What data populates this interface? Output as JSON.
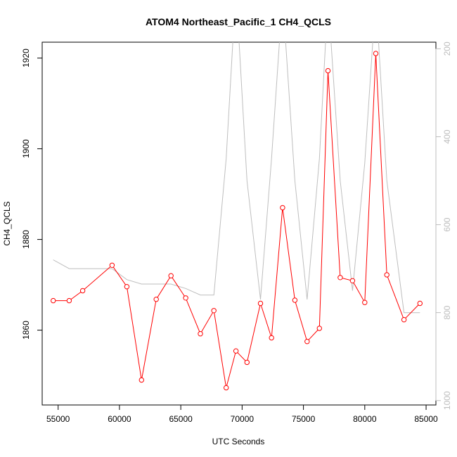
{
  "chart_data": {
    "type": "line",
    "title": "ATOM4 Northeast_Pacific_1 CH4_QCLS",
    "xlabel": "UTC Seconds",
    "ylabel": "CH4_QCLS",
    "xlim": [
      53700,
      85800
    ],
    "ylim": [
      1843.5,
      1923.5
    ],
    "y2lim": [
      1010,
      185
    ],
    "y2_reversed": true,
    "xticks": [
      55000,
      60000,
      65000,
      70000,
      75000,
      80000,
      85000
    ],
    "yticks": [
      1860,
      1880,
      1900,
      1920
    ],
    "y2ticks": [
      200,
      400,
      600,
      800,
      1000
    ],
    "series": [
      {
        "name": "",
        "axis": "left",
        "color": "#ff0000",
        "marker": "open-circle",
        "x": [
          54600,
          55900,
          57000,
          59400,
          60600,
          61800,
          63000,
          64200,
          65400,
          66600,
          67700,
          68700,
          69500,
          70400,
          71500,
          72400,
          73300,
          74300,
          75300,
          76300,
          77000,
          78000,
          79000,
          80000,
          80900,
          81800,
          83200,
          84500
        ],
        "y": [
          1866.5,
          1866.5,
          1868.7,
          1874.3,
          1869.6,
          1849.0,
          1866.8,
          1872.0,
          1867.1,
          1859.2,
          1864.3,
          1847.3,
          1855.4,
          1852.9,
          1865.9,
          1858.3,
          1887.0,
          1866.6,
          1857.5,
          1860.4,
          1917.2,
          1871.6,
          1870.9,
          1866.1,
          1921.0,
          1872.2,
          1862.3,
          1865.9
        ]
      },
      {
        "name": "",
        "axis": "right",
        "color": "#bebebe",
        "marker": "none",
        "x": [
          54600,
          55900,
          57000,
          59400,
          60600,
          61800,
          63000,
          64200,
          65400,
          66600,
          67700,
          68700,
          69500,
          70400,
          71500,
          72400,
          73300,
          74300,
          75300,
          76300,
          77000,
          78000,
          79000,
          80000,
          80900,
          81800,
          83200,
          84500
        ],
        "y": [
          680,
          700,
          700,
          700,
          725,
          735,
          735,
          735,
          745,
          760,
          760,
          450,
          60,
          500,
          770,
          450,
          80,
          500,
          770,
          450,
          80,
          500,
          750,
          460,
          80,
          500,
          800,
          800
        ]
      }
    ]
  }
}
